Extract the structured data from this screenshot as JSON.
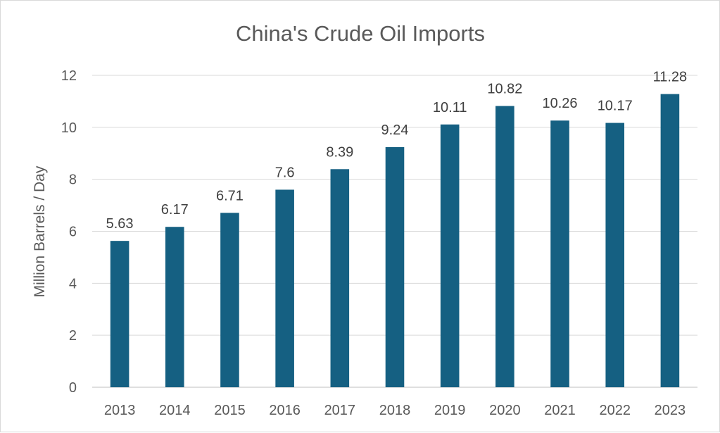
{
  "chart_data": {
    "type": "bar",
    "title": "China's Crude Oil Imports",
    "xlabel": "",
    "ylabel": "Million Barrels / Day",
    "categories": [
      "2013",
      "2014",
      "2015",
      "2016",
      "2017",
      "2018",
      "2019",
      "2020",
      "2021",
      "2022",
      "2023"
    ],
    "values": [
      5.63,
      6.17,
      6.71,
      7.6,
      8.39,
      9.24,
      10.11,
      10.82,
      10.26,
      10.17,
      11.28
    ],
    "data_labels": [
      "5.63",
      "6.17",
      "6.71",
      "7.6",
      "8.39",
      "9.24",
      "10.11",
      "10.82",
      "10.26",
      "10.17",
      "11.28"
    ],
    "ylim": [
      0,
      12
    ],
    "yticks": [
      0,
      2,
      4,
      6,
      8,
      10,
      12
    ],
    "grid": true,
    "legend": "none",
    "bar_color": "#156082"
  }
}
